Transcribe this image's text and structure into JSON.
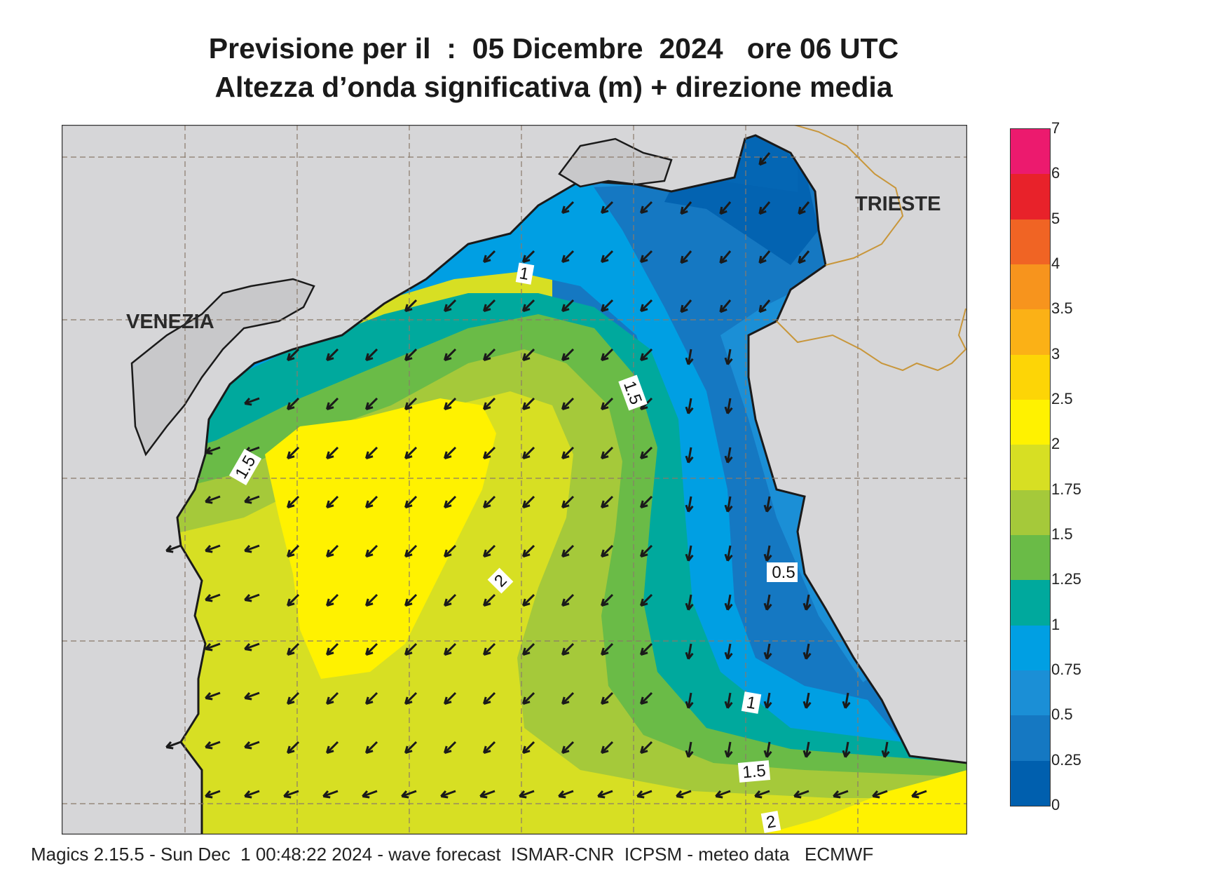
{
  "title": {
    "line1": "Previsione per il  :  05 Dicembre  2024   ore 06 UTC",
    "line2": "Altezza d’onda significativa (m) + direzione media"
  },
  "map": {
    "cities": [
      "VENEZIA",
      "TRIESTE"
    ],
    "contour_labels": [
      "1",
      "1.5",
      "1.5",
      "2",
      "0.5",
      "1",
      "1.5",
      "2"
    ],
    "colors": {
      "land": "#d6d6d8",
      "grid": "#8a7a6a",
      "coast": "#1a1a1a",
      "border": "#c8963a",
      "arrow": "#1a1a1a"
    }
  },
  "legend": {
    "labels": [
      "7",
      "6",
      "5",
      "4",
      "3.5",
      "3",
      "2.5",
      "2",
      "1.75",
      "1.5",
      "1.25",
      "1",
      "0.75",
      "0.5",
      "0.25",
      "0"
    ],
    "colors": [
      "#ec1a6e",
      "#e8222a",
      "#f06424",
      "#f7941d",
      "#fbb116",
      "#fdd506",
      "#fff200",
      "#d7df23",
      "#a5c93a",
      "#6abb47",
      "#00a99d",
      "#009fe3",
      "#1b8fd6",
      "#1578c2",
      "#005fae"
    ]
  },
  "footer": "Magics 2.15.5 - Sun Dec  1 00:48:22 2024 - wave forecast  ISMAR-CNR  ICPSM - meteo data   ECMWF"
}
